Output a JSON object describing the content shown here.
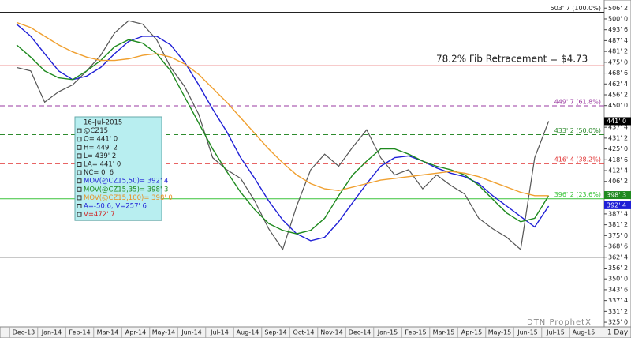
{
  "chart_data": {
    "type": "line",
    "annotation": "78.2% Fib Retracement = $4.73",
    "watermark": "DTN ProphetX",
    "interval": "1 Day",
    "categories": [
      "Dec-13",
      null,
      "Jan-14",
      null,
      "Feb-14",
      null,
      "Mar-14",
      null,
      "Apr-14",
      null,
      "May-14",
      null,
      "Jun-14",
      null,
      "Jul-14",
      null,
      "Aug-14",
      null,
      "Sep-14",
      null,
      "Oct-14",
      null,
      "Nov-14",
      null,
      "Dec-14",
      null,
      "Jan-15",
      null,
      "Feb-15",
      null,
      "Mar-15",
      null,
      "Apr-15",
      null,
      "May-15",
      null,
      "Jun-15",
      null,
      "Jul-15",
      null,
      "Aug-15",
      null
    ],
    "series": [
      {
        "color": "#555555",
        "values": [
          472,
          470,
          452,
          458,
          462,
          470,
          479,
          492,
          499,
          497,
          488,
          472,
          461,
          445,
          420,
          413,
          408,
          395,
          379,
          367,
          392,
          413,
          422,
          415,
          426,
          436,
          420,
          410,
          413,
          402,
          410,
          404,
          399,
          385,
          379,
          374,
          367,
          420,
          441,
          null,
          null,
          null
        ]
      },
      {
        "color": "#1f1fd6",
        "values": [
          497,
          490,
          480,
          470,
          465,
          467,
          472,
          480,
          487,
          490,
          490,
          485,
          475,
          462,
          448,
          435,
          420,
          408,
          395,
          384,
          376,
          372,
          374,
          383,
          394,
          405,
          415,
          420,
          421,
          418,
          414,
          411,
          409,
          405,
          398,
          392,
          386,
          380,
          392,
          null,
          null,
          null
        ]
      },
      {
        "color": "#1f8a1f",
        "values": [
          485,
          478,
          470,
          466,
          465,
          470,
          476,
          484,
          488,
          486,
          480,
          470,
          455,
          440,
          425,
          412,
          400,
          390,
          382,
          378,
          376,
          378,
          385,
          398,
          410,
          418,
          425,
          425,
          422,
          418,
          415,
          413,
          410,
          404,
          396,
          388,
          383,
          385,
          398,
          null,
          null,
          null
        ]
      },
      {
        "color": "#f0a030",
        "values": [
          498,
          495,
          490,
          485,
          481,
          478,
          476,
          476,
          477,
          479,
          480,
          478,
          474,
          468,
          460,
          452,
          443,
          434,
          425,
          417,
          410,
          405,
          402,
          401,
          403,
          405,
          407,
          408,
          409,
          410,
          411,
          412,
          411,
          409,
          406,
          403,
          400,
          398,
          398,
          null,
          null,
          null
        ]
      }
    ],
    "ylim": [
      322.3,
      509.1
    ],
    "yticks": [
      {
        "value": 506.25,
        "label": "506' 2"
      },
      {
        "value": 500,
        "label": "500' 0"
      },
      {
        "value": 493.75,
        "label": "493' 6"
      },
      {
        "value": 487.5,
        "label": "487' 4"
      },
      {
        "value": 481.25,
        "label": "481' 2"
      },
      {
        "value": 475,
        "label": "475' 0"
      },
      {
        "value": 468.75,
        "label": "468' 6"
      },
      {
        "value": 462.5,
        "label": "462' 4"
      },
      {
        "value": 456.25,
        "label": "456' 2"
      },
      {
        "value": 450,
        "label": "450' 0"
      },
      {
        "value": 437.5,
        "label": "437' 4"
      },
      {
        "value": 431.25,
        "label": "431' 2"
      },
      {
        "value": 425,
        "label": "425' 0"
      },
      {
        "value": 418.75,
        "label": "418' 6"
      },
      {
        "value": 412.5,
        "label": "412' 4"
      },
      {
        "value": 406.25,
        "label": "406' 2"
      },
      {
        "value": 387.5,
        "label": "387' 4"
      },
      {
        "value": 381.25,
        "label": "381' 2"
      },
      {
        "value": 375,
        "label": "375' 0"
      },
      {
        "value": 368.75,
        "label": "368' 6"
      },
      {
        "value": 362.5,
        "label": "362' 4"
      },
      {
        "value": 356.25,
        "label": "356' 2"
      },
      {
        "value": 350,
        "label": "350' 0"
      },
      {
        "value": 343.75,
        "label": "343' 6"
      },
      {
        "value": 337.5,
        "label": "337' 4"
      },
      {
        "value": 331.25,
        "label": "331' 2"
      },
      {
        "value": 325,
        "label": "325' 0"
      }
    ],
    "grid": false,
    "levels": [
      {
        "value": 503.875,
        "label": "503' 7 (100.0%)",
        "color": "#222222",
        "dash": false
      },
      {
        "value": 473,
        "color": "#e03030",
        "dash": false
      },
      {
        "value": 449.875,
        "label": "449' 7 (61.8%)",
        "color": "#9a3aa0",
        "dash": true
      },
      {
        "value": 433.25,
        "label": "433' 2 (50.0%)",
        "color": "#2e8b2e",
        "dash": true
      },
      {
        "value": 416.5,
        "label": "416' 4 (38.2%)",
        "color": "#e03030",
        "dash": true
      },
      {
        "value": 396.25,
        "label": "396' 2 (23.6%)",
        "color": "#3ac43a",
        "dash": false
      },
      {
        "value": 362.5,
        "color": "#222222",
        "dash": false
      }
    ],
    "last_prices": [
      {
        "value": 441,
        "label": "441' 0",
        "color": "#000000"
      },
      {
        "value": 398.375,
        "label": "398' 3",
        "color": "#1f8a1f"
      },
      {
        "value": 392.5,
        "label": "392' 4",
        "color": "#1f1fd6"
      }
    ],
    "info_box": [
      {
        "text": "16-Jul-2015",
        "color": "#222222"
      },
      {
        "text": "@CZ15",
        "color": "#222222"
      },
      {
        "text": "O= 441' 0",
        "color": "#222222"
      },
      {
        "text": "H= 449' 2",
        "color": "#222222"
      },
      {
        "text": "L= 439' 2",
        "color": "#222222"
      },
      {
        "text": "LA= 441' 0",
        "color": "#222222"
      },
      {
        "text": "NC= 0' 6",
        "color": "#222222"
      },
      {
        "text": "MOV(@CZ15,50)= 392' 4",
        "color": "#1f1fd6"
      },
      {
        "text": "MOV(@CZ15,35)= 398' 3",
        "color": "#1f8a1f"
      },
      {
        "text": "MOV(@CZ15,100)= 398' 0",
        "color": "#e89020"
      },
      {
        "text": "A=-50.6, V=257' 6",
        "color": "#1f1fd6"
      },
      {
        "text": "V=472' 7",
        "color": "#d02020"
      }
    ]
  }
}
